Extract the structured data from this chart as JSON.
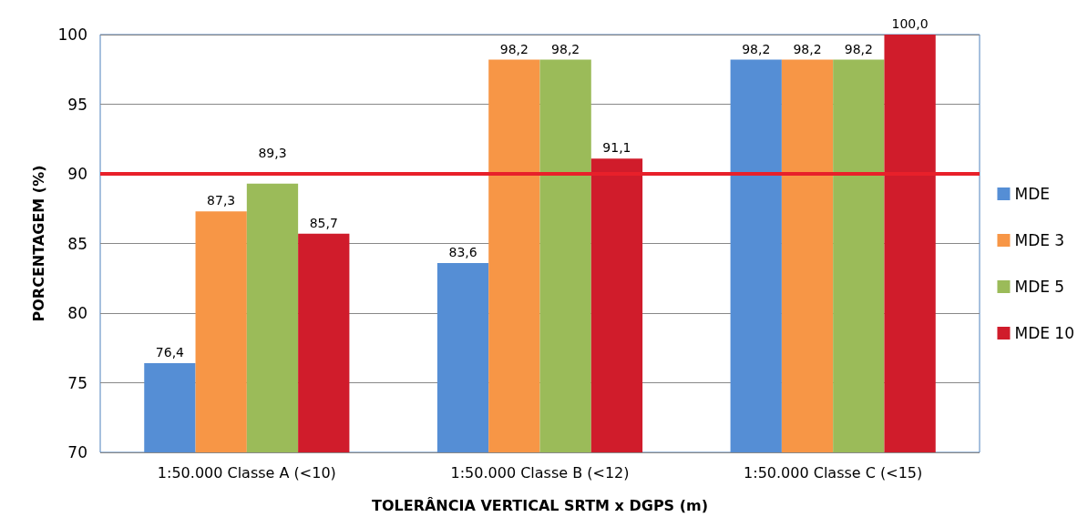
{
  "chart_data": {
    "type": "bar",
    "xlabel": "TOLERÂNCIA VERTICAL SRTM x DGPS (m)",
    "ylabel": "PORCENTAGEM (%)",
    "categories": [
      "1:50.000 Classe A (<10)",
      "1:50.000 Classe B (<12)",
      "1:50.000 Classe C (<15)"
    ],
    "series": [
      {
        "name": "MDE",
        "color": "#558ed5",
        "values": [
          76.4,
          83.6,
          98.2
        ],
        "value_labels": [
          "76,4",
          "83,6",
          "98,2"
        ]
      },
      {
        "name": "MDE 3",
        "color": "#f79646",
        "values": [
          87.3,
          98.2,
          98.2
        ],
        "value_labels": [
          "87,3",
          "98,2",
          "98,2"
        ]
      },
      {
        "name": "MDE 5",
        "color": "#9bbb59",
        "values": [
          89.3,
          98.2,
          98.2
        ],
        "value_labels": [
          "89,3",
          "98,2",
          "98,2"
        ]
      },
      {
        "name": "MDE 10",
        "color": "#d01c2b",
        "values": [
          85.7,
          91.1,
          100.0
        ],
        "value_labels": [
          "85,7",
          "91,1",
          "100,0"
        ]
      }
    ],
    "ylim": [
      70,
      100
    ],
    "yticks": [
      70,
      75,
      80,
      85,
      90,
      95,
      100
    ],
    "grid": "y",
    "legend": "right",
    "ref_lines": [
      {
        "axis": "y",
        "value": 90,
        "color": "#e8202a",
        "line_style": "solid"
      }
    ]
  }
}
